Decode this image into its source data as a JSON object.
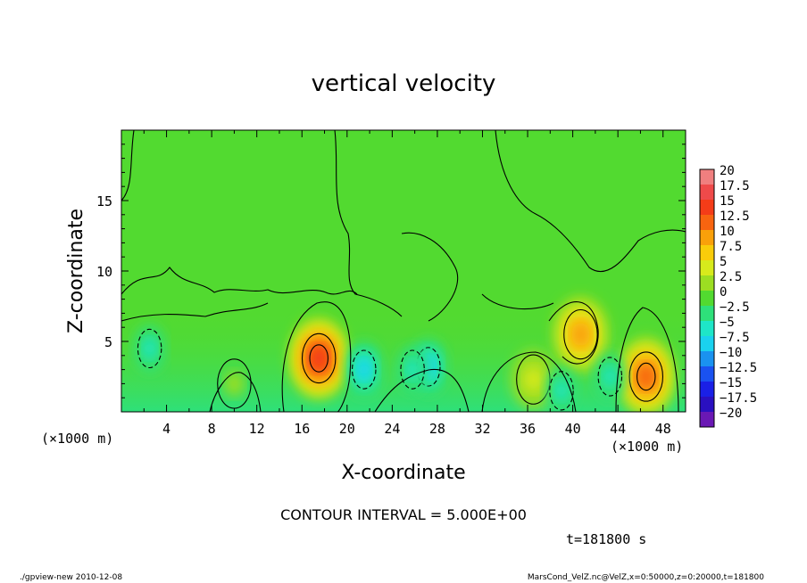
{
  "chart_data": {
    "type": "heatmap",
    "title": "vertical velocity",
    "xlabel": "X-coordinate",
    "ylabel": "Z-coordinate",
    "x_unit_label": "(×1000 m)",
    "x_unit_label_right": "(×1000 m)",
    "xlim": [
      0,
      50
    ],
    "ylim": [
      0,
      20
    ],
    "xticks": [
      "4",
      "8",
      "12",
      "16",
      "20",
      "24",
      "28",
      "32",
      "36",
      "40",
      "44",
      "48"
    ],
    "yticks": [
      "5",
      "10",
      "15"
    ],
    "colorbar_levels": [
      "20",
      "17.5",
      "15",
      "12.5",
      "10",
      "7.5",
      "5",
      "2.5",
      "0",
      "−2.5",
      "−5",
      "−7.5",
      "−10",
      "−12.5",
      "−15",
      "−17.5",
      "−20"
    ],
    "colorbar_colors": [
      "#f07f7f",
      "#ef4a4a",
      "#f43c18",
      "#f86410",
      "#f9a00a",
      "#f9cc0a",
      "#d7ea1c",
      "#9cde22",
      "#52da30",
      "#2ee07a",
      "#1ee6c8",
      "#1ad2ef",
      "#1a92f0",
      "#1a52f0",
      "#1a20e6",
      "#2a10c0",
      "#6a18b4"
    ],
    "contour_interval": "CONTOUR INTERVAL = 5.000E+00",
    "time_label": "t=181800 s",
    "features": [
      {
        "x": 17.5,
        "z": 3.8,
        "value": 14,
        "kind": "updraft"
      },
      {
        "x": 40.7,
        "z": 5.5,
        "value": 9,
        "kind": "updraft"
      },
      {
        "x": 46.5,
        "z": 2.5,
        "value": 12,
        "kind": "updraft"
      },
      {
        "x": 36.5,
        "z": 2.3,
        "value": 5,
        "kind": "updraft"
      },
      {
        "x": 10.0,
        "z": 2.0,
        "value": 3,
        "kind": "updraft"
      },
      {
        "x": 21.5,
        "z": 3.0,
        "value": -7,
        "kind": "downdraft"
      },
      {
        "x": 27.2,
        "z": 3.2,
        "value": -7,
        "kind": "downdraft"
      },
      {
        "x": 25.8,
        "z": 3.0,
        "value": -6,
        "kind": "downdraft"
      },
      {
        "x": 2.5,
        "z": 4.5,
        "value": -4,
        "kind": "downdraft"
      },
      {
        "x": 39.0,
        "z": 1.5,
        "value": -4,
        "kind": "downdraft"
      },
      {
        "x": 43.3,
        "z": 2.5,
        "value": -4,
        "kind": "downdraft"
      }
    ]
  },
  "footer": {
    "left": "./gpview-new  2010-12-08",
    "right": "MarsCond_VelZ.nc@VelZ,x=0:50000,z=0:20000,t=181800"
  }
}
